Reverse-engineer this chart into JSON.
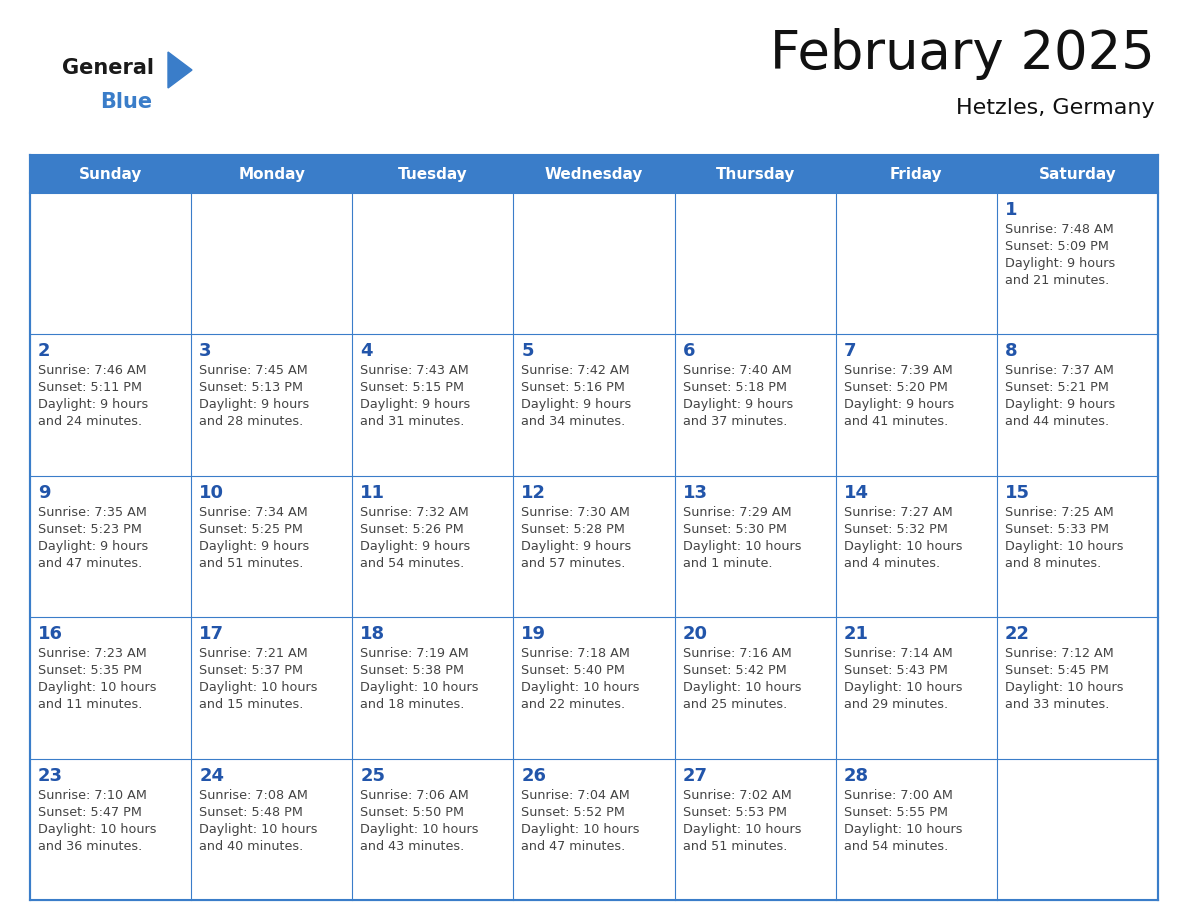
{
  "title": "February 2025",
  "subtitle": "Hetzles, Germany",
  "header_color": "#3A7DC9",
  "header_text_color": "#FFFFFF",
  "day_names": [
    "Sunday",
    "Monday",
    "Tuesday",
    "Wednesday",
    "Thursday",
    "Friday",
    "Saturday"
  ],
  "background_color": "#FFFFFF",
  "border_color": "#3A7DC9",
  "day_num_color": "#2255AA",
  "text_color": "#444444",
  "logo_general_color": "#1A1A1A",
  "logo_blue_color": "#3A7DC9",
  "weeks": [
    [
      {
        "day": null,
        "sunrise": null,
        "sunset": null,
        "daylight": null
      },
      {
        "day": null,
        "sunrise": null,
        "sunset": null,
        "daylight": null
      },
      {
        "day": null,
        "sunrise": null,
        "sunset": null,
        "daylight": null
      },
      {
        "day": null,
        "sunrise": null,
        "sunset": null,
        "daylight": null
      },
      {
        "day": null,
        "sunrise": null,
        "sunset": null,
        "daylight": null
      },
      {
        "day": null,
        "sunrise": null,
        "sunset": null,
        "daylight": null
      },
      {
        "day": 1,
        "sunrise": "7:48 AM",
        "sunset": "5:09 PM",
        "daylight": "9 hours and 21 minutes."
      }
    ],
    [
      {
        "day": 2,
        "sunrise": "7:46 AM",
        "sunset": "5:11 PM",
        "daylight": "9 hours and 24 minutes."
      },
      {
        "day": 3,
        "sunrise": "7:45 AM",
        "sunset": "5:13 PM",
        "daylight": "9 hours and 28 minutes."
      },
      {
        "day": 4,
        "sunrise": "7:43 AM",
        "sunset": "5:15 PM",
        "daylight": "9 hours and 31 minutes."
      },
      {
        "day": 5,
        "sunrise": "7:42 AM",
        "sunset": "5:16 PM",
        "daylight": "9 hours and 34 minutes."
      },
      {
        "day": 6,
        "sunrise": "7:40 AM",
        "sunset": "5:18 PM",
        "daylight": "9 hours and 37 minutes."
      },
      {
        "day": 7,
        "sunrise": "7:39 AM",
        "sunset": "5:20 PM",
        "daylight": "9 hours and 41 minutes."
      },
      {
        "day": 8,
        "sunrise": "7:37 AM",
        "sunset": "5:21 PM",
        "daylight": "9 hours and 44 minutes."
      }
    ],
    [
      {
        "day": 9,
        "sunrise": "7:35 AM",
        "sunset": "5:23 PM",
        "daylight": "9 hours and 47 minutes."
      },
      {
        "day": 10,
        "sunrise": "7:34 AM",
        "sunset": "5:25 PM",
        "daylight": "9 hours and 51 minutes."
      },
      {
        "day": 11,
        "sunrise": "7:32 AM",
        "sunset": "5:26 PM",
        "daylight": "9 hours and 54 minutes."
      },
      {
        "day": 12,
        "sunrise": "7:30 AM",
        "sunset": "5:28 PM",
        "daylight": "9 hours and 57 minutes."
      },
      {
        "day": 13,
        "sunrise": "7:29 AM",
        "sunset": "5:30 PM",
        "daylight": "10 hours and 1 minute."
      },
      {
        "day": 14,
        "sunrise": "7:27 AM",
        "sunset": "5:32 PM",
        "daylight": "10 hours and 4 minutes."
      },
      {
        "day": 15,
        "sunrise": "7:25 AM",
        "sunset": "5:33 PM",
        "daylight": "10 hours and 8 minutes."
      }
    ],
    [
      {
        "day": 16,
        "sunrise": "7:23 AM",
        "sunset": "5:35 PM",
        "daylight": "10 hours and 11 minutes."
      },
      {
        "day": 17,
        "sunrise": "7:21 AM",
        "sunset": "5:37 PM",
        "daylight": "10 hours and 15 minutes."
      },
      {
        "day": 18,
        "sunrise": "7:19 AM",
        "sunset": "5:38 PM",
        "daylight": "10 hours and 18 minutes."
      },
      {
        "day": 19,
        "sunrise": "7:18 AM",
        "sunset": "5:40 PM",
        "daylight": "10 hours and 22 minutes."
      },
      {
        "day": 20,
        "sunrise": "7:16 AM",
        "sunset": "5:42 PM",
        "daylight": "10 hours and 25 minutes."
      },
      {
        "day": 21,
        "sunrise": "7:14 AM",
        "sunset": "5:43 PM",
        "daylight": "10 hours and 29 minutes."
      },
      {
        "day": 22,
        "sunrise": "7:12 AM",
        "sunset": "5:45 PM",
        "daylight": "10 hours and 33 minutes."
      }
    ],
    [
      {
        "day": 23,
        "sunrise": "7:10 AM",
        "sunset": "5:47 PM",
        "daylight": "10 hours and 36 minutes."
      },
      {
        "day": 24,
        "sunrise": "7:08 AM",
        "sunset": "5:48 PM",
        "daylight": "10 hours and 40 minutes."
      },
      {
        "day": 25,
        "sunrise": "7:06 AM",
        "sunset": "5:50 PM",
        "daylight": "10 hours and 43 minutes."
      },
      {
        "day": 26,
        "sunrise": "7:04 AM",
        "sunset": "5:52 PM",
        "daylight": "10 hours and 47 minutes."
      },
      {
        "day": 27,
        "sunrise": "7:02 AM",
        "sunset": "5:53 PM",
        "daylight": "10 hours and 51 minutes."
      },
      {
        "day": 28,
        "sunrise": "7:00 AM",
        "sunset": "5:55 PM",
        "daylight": "10 hours and 54 minutes."
      },
      {
        "day": null,
        "sunrise": null,
        "sunset": null,
        "daylight": null
      }
    ]
  ]
}
